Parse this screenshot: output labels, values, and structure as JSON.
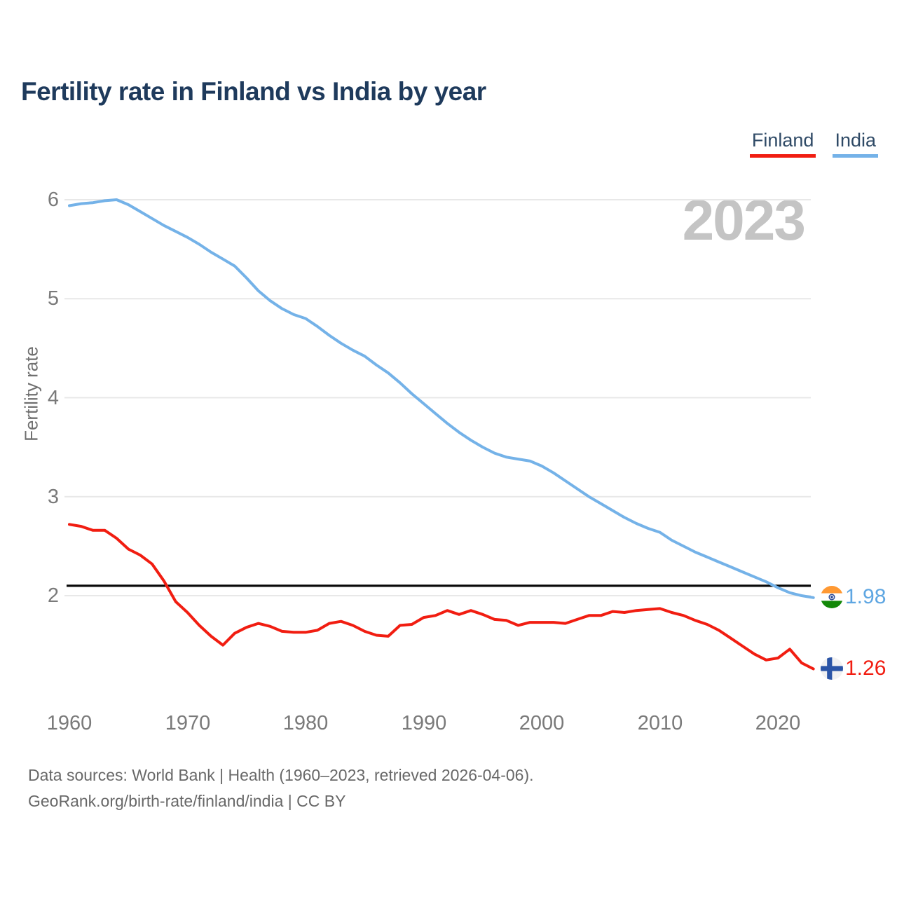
{
  "header": {
    "title": "Fertility rate in Finland vs India by year"
  },
  "legend": {
    "finland_label": "Finland",
    "india_label": "India"
  },
  "watermark": "2023",
  "end_labels": {
    "india_value": "1.98",
    "finland_value": "1.26"
  },
  "icons": {
    "india_flag": "india-flag",
    "finland_flag": "finland-flag"
  },
  "colors": {
    "finland_line": "#f11d11",
    "india_line": "#74b2e8",
    "india_value_label": "#5ea6e2",
    "finland_value_label": "#f11d11",
    "reference_line": "#0a0a0a",
    "gridline": "#e8e8e8",
    "title_text": "#1e3a5c",
    "watermark_text": "#c4c4c4"
  },
  "footer": {
    "line1": "Data sources: World Bank | Health (1960–2023, retrieved 2026-04-06).",
    "line2": "GeoRank.org/birth-rate/finland/india | CC BY"
  },
  "chart_data": {
    "type": "line",
    "title": "Fertility rate in Finland vs India by year",
    "xlabel": "",
    "ylabel": "Fertility rate",
    "x_ticks": [
      1960,
      1970,
      1980,
      1990,
      2000,
      2010,
      2020
    ],
    "y_ticks": [
      6,
      5,
      4,
      3,
      2
    ],
    "xlim": [
      1960,
      2023
    ],
    "ylim": [
      1.1,
      6.2
    ],
    "grid": "horizontal",
    "legend_position": "top-right",
    "reference_line_value": 2.1,
    "x": [
      1960,
      1961,
      1962,
      1963,
      1964,
      1965,
      1966,
      1967,
      1968,
      1969,
      1970,
      1971,
      1972,
      1973,
      1974,
      1975,
      1976,
      1977,
      1978,
      1979,
      1980,
      1981,
      1982,
      1983,
      1984,
      1985,
      1986,
      1987,
      1988,
      1989,
      1990,
      1991,
      1992,
      1993,
      1994,
      1995,
      1996,
      1997,
      1998,
      1999,
      2000,
      2001,
      2002,
      2003,
      2004,
      2005,
      2006,
      2007,
      2008,
      2009,
      2010,
      2011,
      2012,
      2013,
      2014,
      2015,
      2016,
      2017,
      2018,
      2019,
      2020,
      2021,
      2022,
      2023
    ],
    "series": [
      {
        "name": "India",
        "color": "#74b2e8",
        "end_value_label": "1.98",
        "values": [
          5.94,
          5.96,
          5.97,
          5.99,
          6.0,
          5.95,
          5.88,
          5.81,
          5.74,
          5.68,
          5.62,
          5.55,
          5.47,
          5.4,
          5.33,
          5.21,
          5.08,
          4.98,
          4.9,
          4.84,
          4.8,
          4.72,
          4.63,
          4.55,
          4.48,
          4.42,
          4.33,
          4.25,
          4.15,
          4.04,
          3.94,
          3.84,
          3.74,
          3.65,
          3.57,
          3.5,
          3.44,
          3.4,
          3.38,
          3.36,
          3.31,
          3.24,
          3.16,
          3.08,
          3.0,
          2.93,
          2.86,
          2.79,
          2.73,
          2.68,
          2.64,
          2.56,
          2.5,
          2.44,
          2.39,
          2.34,
          2.29,
          2.24,
          2.19,
          2.14,
          2.08,
          2.03,
          2.0,
          1.98
        ]
      },
      {
        "name": "Finland",
        "color": "#f11d11",
        "end_value_label": "1.26",
        "values": [
          2.72,
          2.7,
          2.66,
          2.66,
          2.58,
          2.47,
          2.41,
          2.32,
          2.15,
          1.94,
          1.83,
          1.7,
          1.59,
          1.5,
          1.62,
          1.68,
          1.72,
          1.69,
          1.64,
          1.63,
          1.63,
          1.65,
          1.72,
          1.74,
          1.7,
          1.64,
          1.6,
          1.59,
          1.7,
          1.71,
          1.78,
          1.8,
          1.85,
          1.81,
          1.85,
          1.81,
          1.76,
          1.75,
          1.7,
          1.73,
          1.73,
          1.73,
          1.72,
          1.76,
          1.8,
          1.8,
          1.84,
          1.83,
          1.85,
          1.86,
          1.87,
          1.83,
          1.8,
          1.75,
          1.71,
          1.65,
          1.57,
          1.49,
          1.41,
          1.35,
          1.37,
          1.46,
          1.32,
          1.26
        ]
      }
    ]
  }
}
